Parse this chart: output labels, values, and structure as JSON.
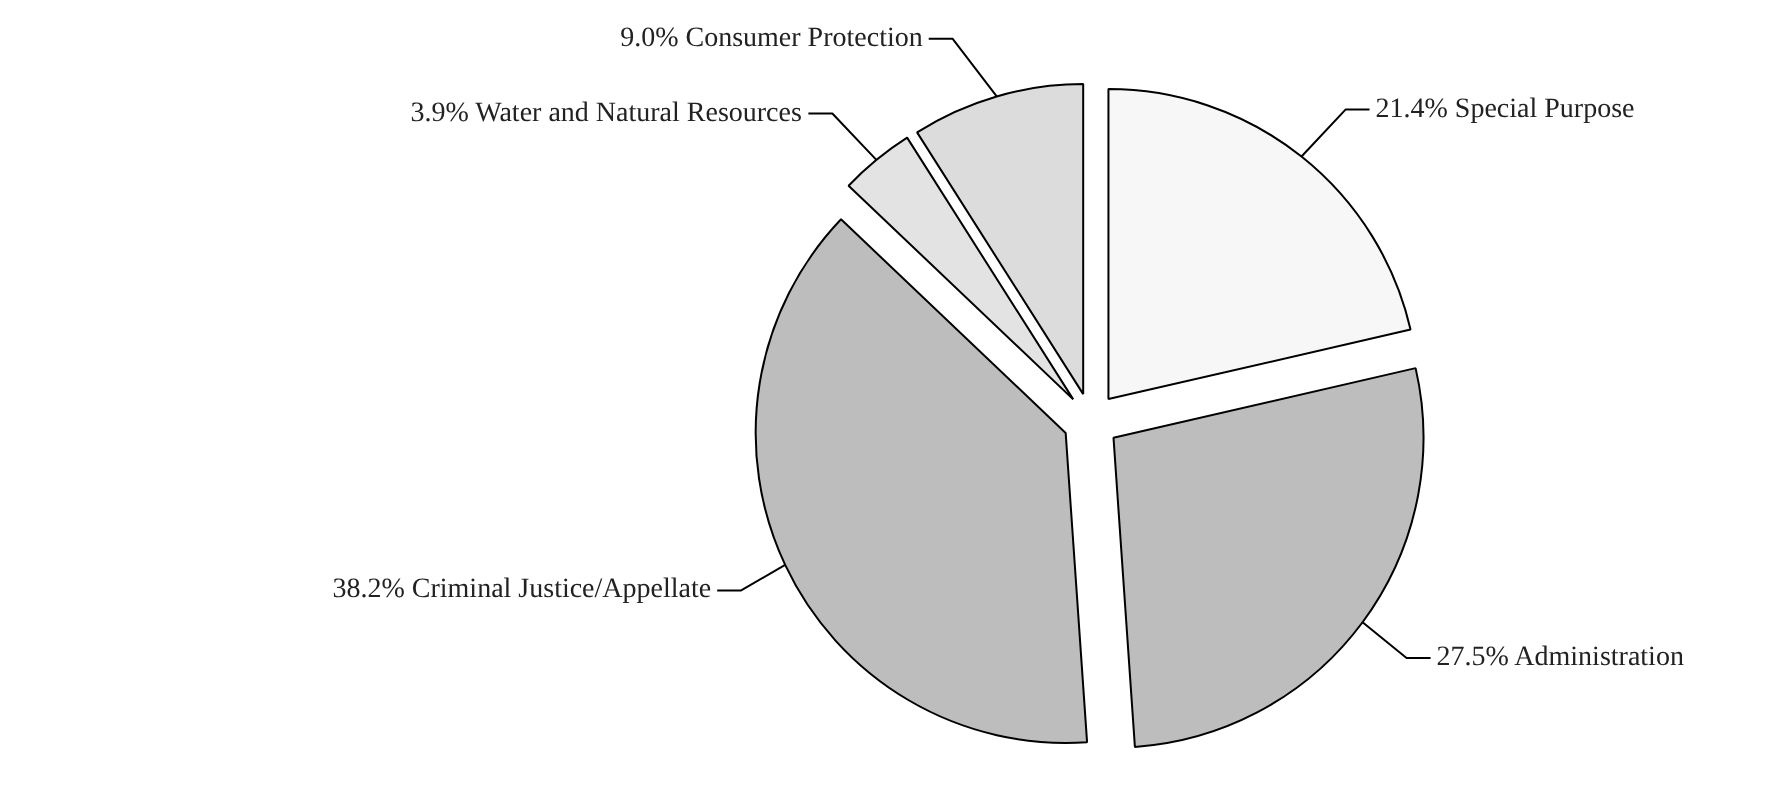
{
  "chart_data": {
    "type": "pie",
    "categories": [
      "21.4% Special Purpose",
      "27.5% Administration",
      "38.2% Criminal Justice/Appellate",
      "3.9% Water and Natural Resources",
      "9.0% Consumer Protection"
    ],
    "values": [
      21.4,
      27.5,
      38.2,
      3.9,
      9.0
    ],
    "colors": [
      "#f7f7f7",
      "#bdbdbd",
      "#bdbdbd",
      "#e3e3e3",
      "#dcdcdc"
    ]
  }
}
